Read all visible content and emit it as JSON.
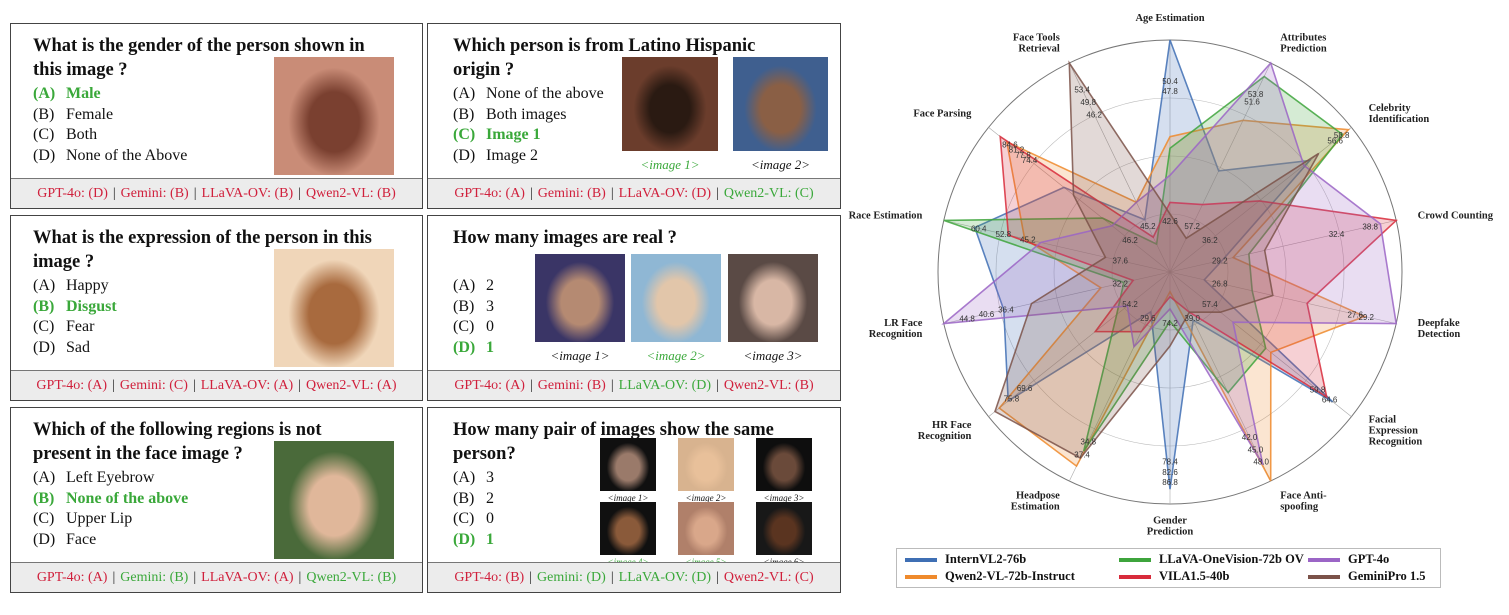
{
  "cards": [
    {
      "question": [
        "What is the gender of the person shown in",
        "this image ?"
      ],
      "options": [
        {
          "label": "(A)",
          "text": "Male",
          "correct": true
        },
        {
          "label": "(B)",
          "text": "Female",
          "correct": false
        },
        {
          "label": "(C)",
          "text": "Both",
          "correct": false
        },
        {
          "label": "(D)",
          "text": "None of the Above",
          "correct": false
        }
      ],
      "images": [],
      "results": [
        {
          "text": "GPT-4o: (D)",
          "correct": false
        },
        {
          "text": "Gemini: (B)",
          "correct": false
        },
        {
          "text": "LLaVA-OV: (B)",
          "correct": false
        },
        {
          "text": "Qwen2-VL: (B)",
          "correct": false
        }
      ]
    },
    {
      "question": [
        "Which person is from Latino Hispanic",
        "origin ?"
      ],
      "options": [
        {
          "label": "(A)",
          "text": "None of the above",
          "correct": false
        },
        {
          "label": "(B)",
          "text": "Both images",
          "correct": false
        },
        {
          "label": "(C)",
          "text": "Image 1",
          "correct": true
        },
        {
          "label": "(D)",
          "text": "Image 2",
          "correct": false
        }
      ],
      "images": [
        {
          "caption": "<image 1>",
          "correct": true
        },
        {
          "caption": "<image 2>",
          "correct": false
        }
      ],
      "results": [
        {
          "text": "GPT-4o: (A)",
          "correct": false
        },
        {
          "text": "Gemini: (B)",
          "correct": false
        },
        {
          "text": "LLaVA-OV: (D)",
          "correct": false
        },
        {
          "text": "Qwen2-VL: (C)",
          "correct": true
        }
      ]
    },
    {
      "question": [
        "What is the expression of the person in this",
        "image ?"
      ],
      "options": [
        {
          "label": "(A)",
          "text": "Happy",
          "correct": false
        },
        {
          "label": "(B)",
          "text": "Disgust",
          "correct": true
        },
        {
          "label": "(C)",
          "text": "Fear",
          "correct": false
        },
        {
          "label": "(D)",
          "text": "Sad",
          "correct": false
        }
      ],
      "images": [],
      "results": [
        {
          "text": "GPT-4o: (A)",
          "correct": false
        },
        {
          "text": "Gemini: (C)",
          "correct": false
        },
        {
          "text": "LLaVA-OV: (A)",
          "correct": false
        },
        {
          "text": "Qwen2-VL: (A)",
          "correct": false
        }
      ]
    },
    {
      "question": [
        "How many images are real ?"
      ],
      "options": [
        {
          "label": "(A)",
          "text": "2",
          "correct": false
        },
        {
          "label": "(B)",
          "text": "3",
          "correct": false
        },
        {
          "label": "(C)",
          "text": "0",
          "correct": false
        },
        {
          "label": "(D)",
          "text": "1",
          "correct": true
        }
      ],
      "images": [
        {
          "caption": "<image 1>",
          "correct": false
        },
        {
          "caption": "<image 2>",
          "correct": true
        },
        {
          "caption": "<image 3>",
          "correct": false
        }
      ],
      "results": [
        {
          "text": "GPT-4o: (A)",
          "correct": false
        },
        {
          "text": "Gemini: (B)",
          "correct": false
        },
        {
          "text": "LLaVA-OV: (D)",
          "correct": true
        },
        {
          "text": "Qwen2-VL: (B)",
          "correct": false
        }
      ]
    },
    {
      "question": [
        "Which of the following regions is not",
        "present in the face image ?"
      ],
      "options": [
        {
          "label": "(A)",
          "text": "Left Eyebrow",
          "correct": false
        },
        {
          "label": "(B)",
          "text": "None of the above",
          "correct": true
        },
        {
          "label": "(C)",
          "text": "Upper Lip",
          "correct": false
        },
        {
          "label": "(D)",
          "text": "Face",
          "correct": false
        }
      ],
      "images": [],
      "results": [
        {
          "text": "GPT-4o: (A)",
          "correct": false
        },
        {
          "text": "Gemini: (B)",
          "correct": true
        },
        {
          "text": "LLaVA-OV: (A)",
          "correct": false
        },
        {
          "text": "Qwen2-VL: (B)",
          "correct": true
        }
      ]
    },
    {
      "question": [
        "How many pair of images show the same",
        "person?"
      ],
      "options": [
        {
          "label": "(A)",
          "text": "3",
          "correct": false
        },
        {
          "label": "(B)",
          "text": "2",
          "correct": false
        },
        {
          "label": "(C)",
          "text": "0",
          "correct": false
        },
        {
          "label": "(D)",
          "text": "1",
          "correct": true
        }
      ],
      "images": [
        {
          "caption": "<image 1>",
          "correct": false
        },
        {
          "caption": "<image 2>",
          "correct": false
        },
        {
          "caption": "<image 3>",
          "correct": false
        },
        {
          "caption": "<image 4>",
          "correct": true
        },
        {
          "caption": "<image 5>",
          "correct": true
        },
        {
          "caption": "<image 6>",
          "correct": false
        }
      ],
      "results": [
        {
          "text": "GPT-4o: (B)",
          "correct": false
        },
        {
          "text": "Gemini: (D)",
          "correct": true
        },
        {
          "text": "LLaVA-OV: (D)",
          "correct": true
        },
        {
          "text": "Qwen2-VL: (C)",
          "correct": false
        }
      ]
    }
  ],
  "colors": {
    "correct": "#3aa83a",
    "wrong": "#d0203c"
  },
  "chart_data": {
    "type": "radar",
    "axes": [
      "Age Estimation",
      "Attributes Prediction",
      "Celebrity Identification",
      "Crowd Counting",
      "Deepfake Detection",
      "Facial Expression Recognition",
      "Face Anti-spoofing",
      "Gender Prediction",
      "Headpose Estimation",
      "HR Face Recognition",
      "LR Face Recognition",
      "Race Estimation",
      "Face Parsing",
      "Face Tools Retrieval"
    ],
    "axis_max": [
      60.0,
      62.0,
      61.0,
      43.0,
      33.0,
      72.0,
      52.0,
      94.0,
      42.0,
      85.0,
      49.0,
      70.0,
      94.0,
      60.0
    ],
    "ticks": [
      [
        47.8,
        50.4
      ],
      [
        51.6,
        53.8
      ],
      [
        56.6,
        58.8
      ],
      [
        32.4,
        38.8
      ],
      [
        27.6,
        29.2
      ],
      [
        59.8,
        64.6
      ],
      [
        42.0,
        45.0,
        48.0
      ],
      [
        78.4,
        82.6,
        86.8
      ],
      [
        34.8,
        37.4
      ],
      [
        69.6,
        75.8
      ],
      [
        36.4,
        40.6,
        44.8
      ],
      [
        45.2,
        52.8,
        60.4
      ],
      [
        74.4,
        77.8,
        81.2,
        84.6
      ],
      [
        46.2,
        49.8,
        53.4
      ]
    ],
    "inner_ticks": [
      42.6,
      57.2,
      36.2,
      29.2,
      26.8,
      57.4,
      39.0,
      74.2,
      29.6,
      54.2,
      32.2,
      37.6,
      46.2,
      45.2
    ],
    "series": [
      {
        "name": "InternVL2-76b",
        "color": "#3f6fb4",
        "values": [
          60.0,
          30,
          47,
          10,
          5,
          64.6,
          12,
          88,
          8,
          75.8,
          36,
          60.4,
          55,
          15
        ]
      },
      {
        "name": "Qwen2-VL-72b-Instruct",
        "color": "#ef8a2c",
        "values": [
          35,
          45,
          60,
          12,
          28.4,
          40,
          52,
          8,
          39,
          80,
          15,
          45,
          84.6,
          20
        ]
      },
      {
        "name": "LLaVA-OneVision-72b OV",
        "color": "#3ea43c",
        "values": [
          32,
          58,
          58,
          15,
          12,
          38,
          30,
          20,
          36,
          25,
          10,
          70,
          35,
          8
        ]
      },
      {
        "name": "VILA1.5-40b",
        "color": "#d82b3b",
        "values": [
          18,
          20,
          30,
          43,
          20,
          62.2,
          10,
          10,
          12,
          35,
          8,
          50,
          88,
          10
        ]
      },
      {
        "name": "GPT-4o",
        "color": "#9b65c6",
        "values": [
          25,
          62,
          45,
          40,
          33,
          25,
          48,
          15,
          15,
          20,
          49,
          40,
          30,
          20
        ]
      },
      {
        "name": "GeminiPro 1.5",
        "color": "#7b5249",
        "values": [
          15,
          10,
          50,
          18,
          15,
          20,
          10,
          30,
          37.4,
          82,
          30,
          20,
          50,
          60
        ]
      }
    ],
    "legend_position": "bottom"
  }
}
